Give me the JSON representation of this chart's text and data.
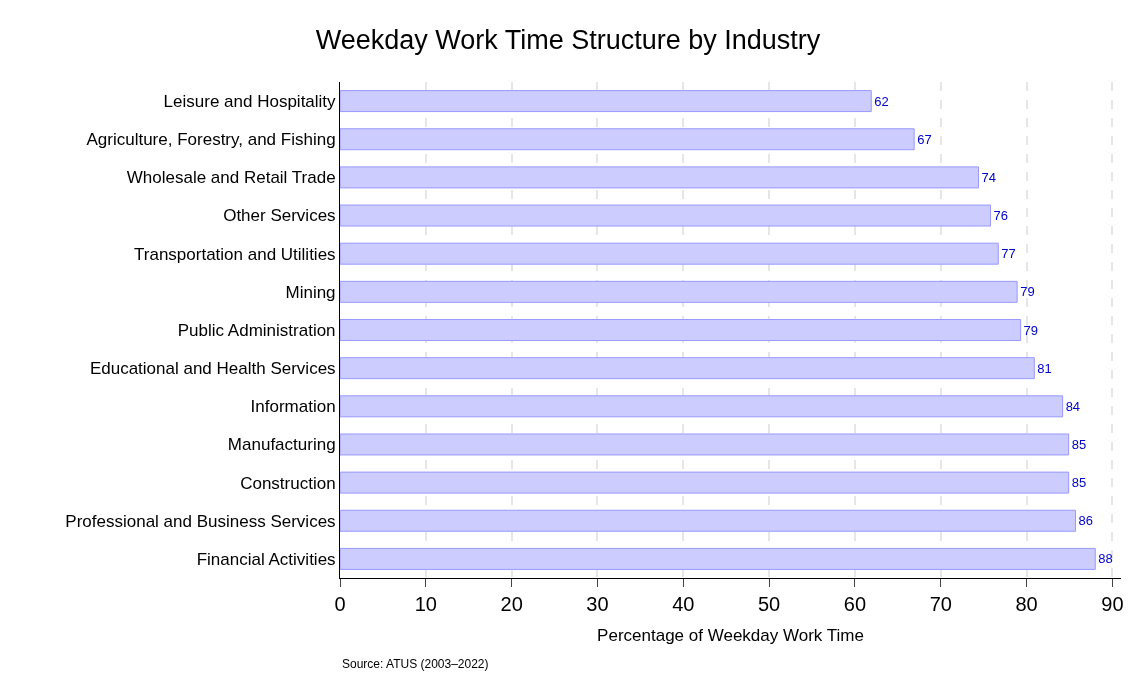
{
  "chart_data": {
    "type": "bar",
    "orientation": "horizontal",
    "title": "Weekday Work Time Structure by Industry",
    "xlabel": "Percentage of Weekday Work Time",
    "categories": [
      "Leisure and Hospitality",
      "Agriculture, Forestry, and Fishing",
      "Wholesale and Retail Trade",
      "Other Services",
      "Transportation and Utilities",
      "Mining",
      "Public Administration",
      "Educational and Health Services",
      "Information",
      "Manufacturing",
      "Construction",
      "Professional and Business Services",
      "Financial Activities"
    ],
    "values": [
      61.9,
      66.9,
      74.4,
      75.8,
      76.7,
      78.9,
      79.3,
      80.9,
      84.2,
      84.9,
      84.9,
      85.7,
      88.0
    ],
    "value_labels": [
      "62",
      "67",
      "74",
      "76",
      "77",
      "79",
      "79",
      "81",
      "84",
      "85",
      "85",
      "86",
      "88"
    ],
    "color": "#ccccff",
    "xlim": [
      0,
      91
    ],
    "xticks": [
      0,
      10,
      20,
      30,
      40,
      50,
      60,
      70,
      80,
      90
    ],
    "grid": "x",
    "annotations": [
      "Source: ATUS (2003–2022)"
    ]
  }
}
